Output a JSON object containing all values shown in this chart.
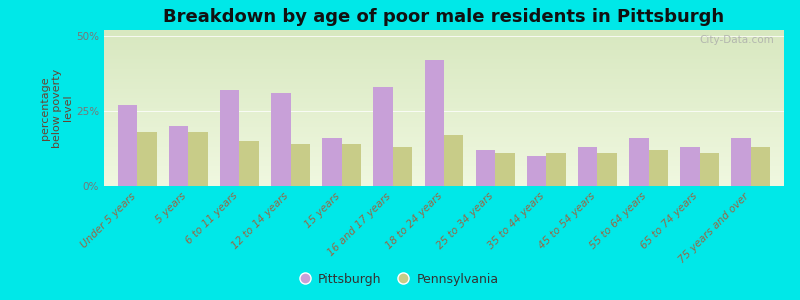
{
  "title": "Breakdown by age of poor male residents in Pittsburgh",
  "ylabel": "percentage\nbelow poverty\nlevel",
  "categories": [
    "Under 5 years",
    "5 years",
    "6 to 11 years",
    "12 to 14 years",
    "15 years",
    "16 and 17 years",
    "18 to 24 years",
    "25 to 34 years",
    "35 to 44 years",
    "45 to 54 years",
    "55 to 64 years",
    "65 to 74 years",
    "75 years and over"
  ],
  "pittsburgh": [
    27,
    20,
    32,
    31,
    16,
    33,
    42,
    12,
    10,
    13,
    16,
    13,
    16
  ],
  "pennsylvania": [
    18,
    18,
    15,
    14,
    14,
    13,
    17,
    11,
    11,
    11,
    12,
    11,
    13
  ],
  "pittsburgh_color": "#c8a0d8",
  "pennsylvania_color": "#c8cc88",
  "bg_top": "#d8e8c0",
  "bg_bottom": "#f0f8e0",
  "outer_background": "#00e8e8",
  "yticks": [
    0,
    25,
    50
  ],
  "ytick_labels": [
    "0%",
    "25%",
    "50%"
  ],
  "ylim": [
    0,
    52
  ],
  "bar_width": 0.38,
  "title_fontsize": 13,
  "axis_label_fontsize": 8,
  "tick_fontsize": 7.5,
  "legend_fontsize": 9,
  "watermark": "City-Data.com",
  "xlabel_color": "#996644",
  "ylabel_color": "#664433",
  "ytick_color": "#777777",
  "title_color": "#111111"
}
